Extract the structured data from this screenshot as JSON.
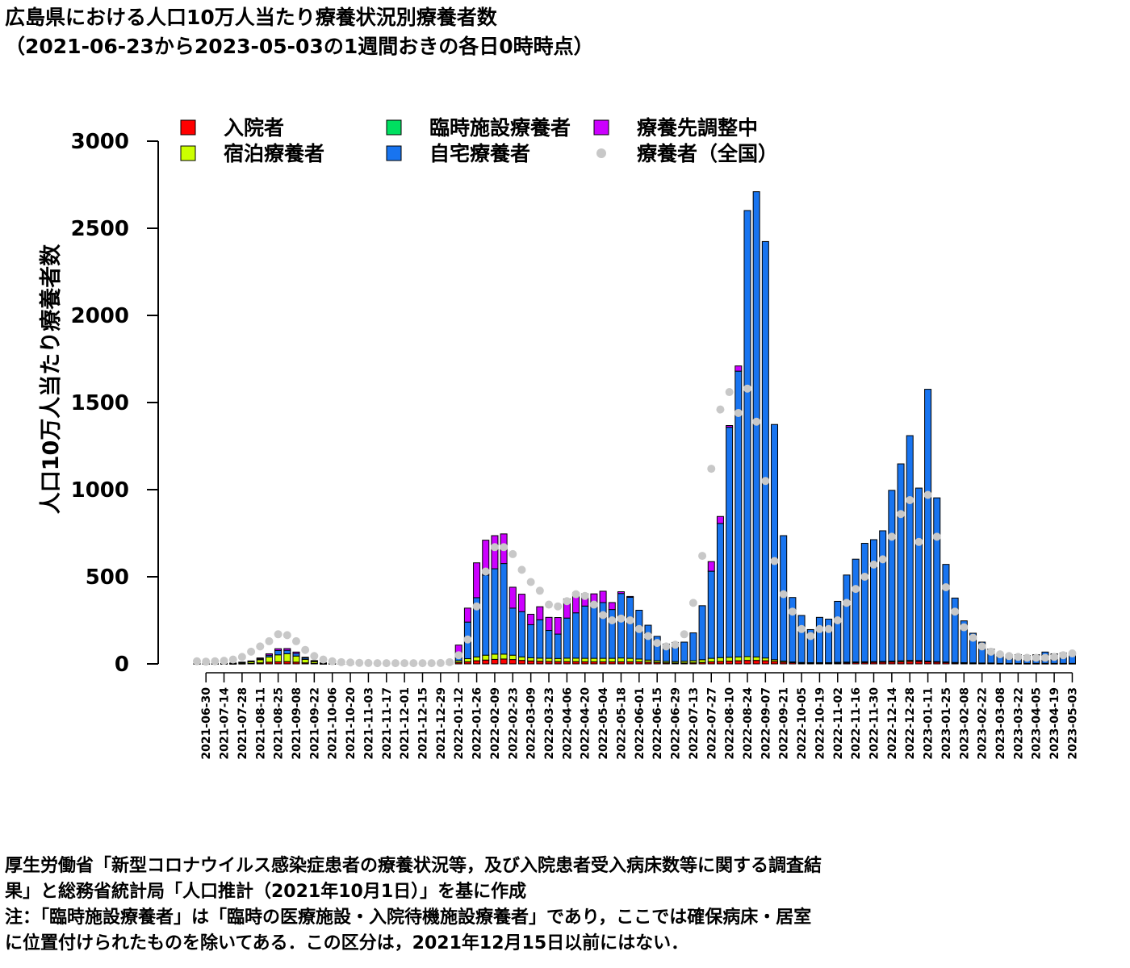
{
  "title": "広島県における人口10万人当たり療養状況別療養者数",
  "subtitle": "（2021-06-23から2023-05-03の1週間おきの各日0時時点）",
  "notes": [
    "厚生労働省「新型コロナウイルス感染症患者の療養状況等，及び入院患者受入病床数等に関する調査結",
    "果」と総務省統計局「人口推計（2021年10月1日）」を基に作成",
    "注：「臨時施設療養者」は「臨時の医療施設・入院待機施設療養者」であり，ここでは確保病床・居室",
    "に位置付けられたものを除いてある．この区分は，2021年12月15日以前にはない．"
  ],
  "chart_data": {
    "type": "bar",
    "stacked": true,
    "ylabel": "人口10万人当たり療養者数",
    "ylim": [
      0,
      3000
    ],
    "yticks": [
      0,
      500,
      1000,
      1500,
      2000,
      2500,
      3000
    ],
    "legend_position": "top",
    "dates": [
      "2021-06-23",
      "2021-06-30",
      "2021-07-07",
      "2021-07-14",
      "2021-07-21",
      "2021-07-28",
      "2021-08-04",
      "2021-08-11",
      "2021-08-18",
      "2021-08-25",
      "2021-09-01",
      "2021-09-08",
      "2021-09-15",
      "2021-09-22",
      "2021-09-29",
      "2021-10-06",
      "2021-10-13",
      "2021-10-20",
      "2021-10-27",
      "2021-11-03",
      "2021-11-10",
      "2021-11-17",
      "2021-11-24",
      "2021-12-01",
      "2021-12-08",
      "2021-12-15",
      "2021-12-22",
      "2021-12-29",
      "2022-01-05",
      "2022-01-12",
      "2022-01-19",
      "2022-01-26",
      "2022-02-02",
      "2022-02-09",
      "2022-02-16",
      "2022-02-23",
      "2022-03-02",
      "2022-03-09",
      "2022-03-16",
      "2022-03-23",
      "2022-03-30",
      "2022-04-06",
      "2022-04-13",
      "2022-04-20",
      "2022-04-27",
      "2022-05-04",
      "2022-05-11",
      "2022-05-18",
      "2022-05-25",
      "2022-06-01",
      "2022-06-08",
      "2022-06-15",
      "2022-06-22",
      "2022-06-29",
      "2022-07-06",
      "2022-07-13",
      "2022-07-20",
      "2022-07-27",
      "2022-08-03",
      "2022-08-10",
      "2022-08-17",
      "2022-08-24",
      "2022-08-31",
      "2022-09-07",
      "2022-09-14",
      "2022-09-21",
      "2022-09-28",
      "2022-10-05",
      "2022-10-12",
      "2022-10-19",
      "2022-10-26",
      "2022-11-02",
      "2022-11-09",
      "2022-11-16",
      "2022-11-23",
      "2022-11-30",
      "2022-12-07",
      "2022-12-14",
      "2022-12-21",
      "2022-12-28",
      "2023-01-04",
      "2023-01-11",
      "2023-01-18",
      "2023-01-25",
      "2023-02-01",
      "2023-02-08",
      "2023-02-15",
      "2023-02-22",
      "2023-03-01",
      "2023-03-08",
      "2023-03-15",
      "2023-03-22",
      "2023-03-29",
      "2023-04-05",
      "2023-04-12",
      "2023-04-19",
      "2023-04-26",
      "2023-05-03"
    ],
    "series": [
      {
        "name": "入院者",
        "color": "#ff0000",
        "values": [
          1,
          1,
          1,
          1,
          1,
          2,
          3,
          6,
          10,
          12,
          13,
          10,
          6,
          3,
          1,
          1,
          0,
          0,
          0,
          0,
          0,
          0,
          0,
          0,
          0,
          0,
          0,
          0,
          2,
          8,
          12,
          18,
          22,
          26,
          28,
          25,
          20,
          17,
          15,
          14,
          13,
          13,
          13,
          12,
          12,
          12,
          12,
          12,
          12,
          12,
          10,
          8,
          6,
          5,
          5,
          6,
          8,
          12,
          14,
          16,
          18,
          20,
          20,
          18,
          14,
          10,
          7,
          5,
          4,
          4,
          4,
          5,
          6,
          7,
          8,
          9,
          10,
          11,
          12,
          14,
          14,
          12,
          10,
          8,
          6,
          5,
          4,
          3,
          3,
          2,
          2,
          2,
          2,
          2,
          2,
          2,
          2,
          2
        ]
      },
      {
        "name": "宿泊療養者",
        "color": "#ccff00",
        "values": [
          1,
          1,
          1,
          2,
          3,
          6,
          10,
          18,
          30,
          40,
          45,
          35,
          20,
          10,
          3,
          2,
          1,
          1,
          0,
          0,
          0,
          0,
          0,
          0,
          0,
          0,
          0,
          0,
          3,
          10,
          18,
          22,
          28,
          30,
          28,
          25,
          20,
          18,
          18,
          18,
          18,
          20,
          20,
          20,
          20,
          20,
          20,
          22,
          20,
          16,
          12,
          10,
          8,
          8,
          10,
          12,
          16,
          20,
          22,
          22,
          22,
          22,
          20,
          16,
          10,
          6,
          4,
          3,
          3,
          3,
          3,
          4,
          4,
          4,
          4,
          4,
          4,
          5,
          6,
          6,
          5,
          4,
          3,
          3,
          2,
          2,
          2,
          2,
          2,
          1,
          1,
          1,
          1,
          1,
          1,
          1,
          1,
          1
        ]
      },
      {
        "name": "臨時施設療養者",
        "color": "#00e060",
        "values": [
          0,
          0,
          0,
          0,
          0,
          0,
          0,
          0,
          0,
          0,
          0,
          0,
          0,
          0,
          0,
          0,
          0,
          0,
          0,
          0,
          0,
          0,
          0,
          0,
          0,
          0,
          0,
          0,
          0,
          0,
          0,
          0,
          0,
          0,
          0,
          0,
          0,
          0,
          0,
          0,
          0,
          0,
          0,
          0,
          0,
          0,
          0,
          0,
          0,
          0,
          0,
          0,
          0,
          0,
          0,
          0,
          0,
          0,
          0,
          0,
          0,
          0,
          0,
          0,
          0,
          0,
          0,
          0,
          0,
          0,
          0,
          0,
          0,
          0,
          0,
          0,
          0,
          0,
          0,
          0,
          0,
          0,
          0,
          0,
          0,
          0,
          0,
          0,
          0,
          0,
          0,
          0,
          0,
          0,
          0,
          0,
          0,
          0
        ]
      },
      {
        "name": "自宅療養者",
        "color": "#1874f0",
        "values": [
          0,
          0,
          0,
          0,
          1,
          1,
          2,
          5,
          10,
          25,
          20,
          15,
          8,
          4,
          1,
          0,
          0,
          0,
          0,
          0,
          0,
          0,
          0,
          0,
          0,
          0,
          0,
          0,
          0,
          30,
          210,
          340,
          460,
          490,
          520,
          270,
          260,
          190,
          220,
          160,
          140,
          230,
          260,
          300,
          320,
          320,
          280,
          370,
          350,
          280,
          200,
          140,
          100,
          110,
          110,
          160,
          310,
          500,
          770,
          1320,
          1640,
          2560,
          2670,
          2390,
          1350,
          720,
          370,
          270,
          190,
          260,
          250,
          350,
          500,
          590,
          680,
          700,
          750,
          980,
          1130,
          1290,
          990,
          1560,
          940,
          560,
          370,
          240,
          170,
          120,
          80,
          60,
          50,
          50,
          45,
          50,
          65,
          55,
          60,
          60
        ]
      },
      {
        "name": "療養先調整中",
        "color": "#cc00ff",
        "values": [
          0,
          0,
          0,
          0,
          0,
          1,
          2,
          5,
          8,
          10,
          10,
          8,
          4,
          2,
          1,
          0,
          0,
          0,
          0,
          0,
          0,
          0,
          0,
          0,
          0,
          0,
          0,
          0,
          0,
          60,
          80,
          200,
          200,
          190,
          170,
          120,
          100,
          60,
          75,
          75,
          95,
          110,
          115,
          70,
          50,
          65,
          40,
          10,
          5,
          0,
          0,
          0,
          0,
          0,
          0,
          0,
          0,
          55,
          40,
          10,
          30,
          0,
          0,
          0,
          0,
          0,
          0,
          0,
          0,
          0,
          0,
          0,
          0,
          0,
          0,
          0,
          0,
          0,
          0,
          0,
          0,
          0,
          0,
          0,
          0,
          0,
          0,
          0,
          0,
          0,
          0,
          0,
          0,
          0,
          0,
          0,
          0,
          0
        ]
      }
    ],
    "national": {
      "name": "療養者（全国）",
      "color": "#c8c8c8",
      "values": [
        15,
        13,
        15,
        18,
        25,
        40,
        70,
        100,
        130,
        170,
        165,
        130,
        80,
        45,
        25,
        15,
        10,
        8,
        6,
        5,
        4,
        4,
        4,
        4,
        4,
        4,
        4,
        5,
        10,
        50,
        140,
        330,
        530,
        670,
        670,
        630,
        540,
        470,
        420,
        340,
        330,
        360,
        400,
        390,
        340,
        280,
        250,
        260,
        250,
        200,
        160,
        120,
        100,
        110,
        170,
        350,
        620,
        1120,
        1460,
        1560,
        1440,
        1580,
        1390,
        1050,
        590,
        400,
        300,
        200,
        160,
        200,
        200,
        250,
        350,
        430,
        500,
        570,
        600,
        730,
        860,
        940,
        700,
        970,
        730,
        440,
        300,
        210,
        150,
        100,
        70,
        55,
        45,
        40,
        35,
        35,
        35,
        40,
        50,
        60
      ]
    },
    "xtick_labels": [
      "2021-06-30",
      "2021-07-14",
      "2021-07-28",
      "2021-08-11",
      "2021-08-25",
      "2021-09-08",
      "2021-09-22",
      "2021-10-06",
      "2021-10-20",
      "2021-11-03",
      "2021-11-17",
      "2021-12-01",
      "2021-12-15",
      "2021-12-29",
      "2022-01-12",
      "2022-01-26",
      "2022-02-09",
      "2022-02-23",
      "2022-03-09",
      "2022-03-23",
      "2022-04-06",
      "2022-04-20",
      "2022-05-04",
      "2022-05-18",
      "2022-06-01",
      "2022-06-15",
      "2022-06-29",
      "2022-07-13",
      "2022-07-27",
      "2022-08-10",
      "2022-08-24",
      "2022-09-07",
      "2022-09-21",
      "2022-10-05",
      "2022-10-19",
      "2022-11-02",
      "2022-11-16",
      "2022-11-30",
      "2022-12-14",
      "2022-12-28",
      "2023-01-11",
      "2023-01-25",
      "2023-02-08",
      "2023-02-22",
      "2023-03-08",
      "2023-03-22",
      "2023-04-05",
      "2023-04-19",
      "2023-05-03"
    ]
  }
}
